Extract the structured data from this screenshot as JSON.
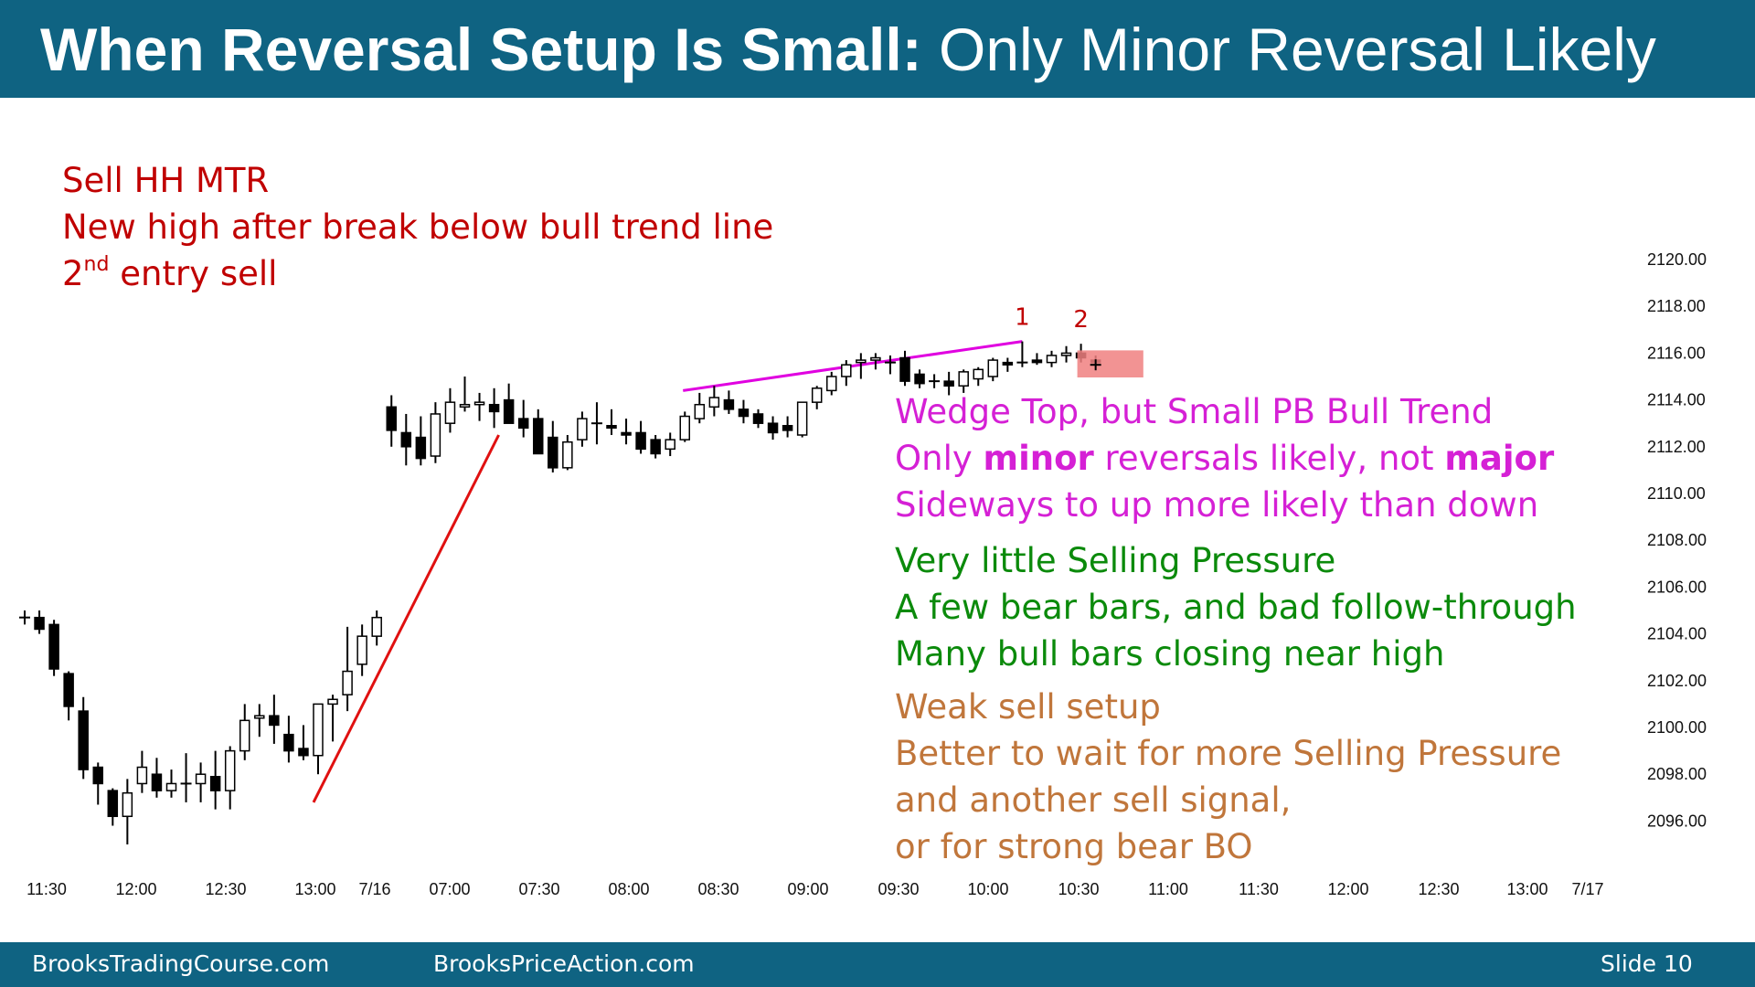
{
  "header": {
    "title_bold": "When Reversal Setup Is Small:",
    "title_rest": "Only Minor Reversal Likely"
  },
  "notes": {
    "red": {
      "line1": "Sell HH MTR",
      "line2": "New high after break below bull trend line",
      "line3_num": "2",
      "line3_sup": "nd",
      "line3_rest": " entry sell"
    },
    "magenta": {
      "line1": "Wedge Top, but Small PB Bull Trend",
      "line2_a": "Only ",
      "line2_b": "minor",
      "line2_c": " reversals likely, not ",
      "line2_d": "major",
      "line3": "Sideways to up more likely than down"
    },
    "green": {
      "line1": "Very little Selling Pressure",
      "line2": "A few bear bars, and bad follow-through",
      "line3": "Many bull bars closing near high"
    },
    "brown": {
      "line1": "Weak sell setup",
      "line2": "Better to wait for more Selling Pressure",
      "line3": "and another sell signal,",
      "line4": "or for strong bear BO"
    }
  },
  "footer": {
    "left": "BrooksTradingCourse.com",
    "center": "BrooksPriceAction.com",
    "slide": "Slide  10"
  },
  "colors": {
    "header_bg": "#0f6382",
    "trendline": "#e01010",
    "wedge_line": "#e000e0",
    "signal_box": "#f08080"
  },
  "chart_data": {
    "type": "candlestick",
    "title": "",
    "ylim": [
      2095,
      2121
    ],
    "yticks": [
      "2120.00",
      "2118.00",
      "2116.00",
      "2114.00",
      "2112.00",
      "2110.00",
      "2108.00",
      "2106.00",
      "2104.00",
      "2102.00",
      "2100.00",
      "2098.00",
      "2096.00"
    ],
    "xtick_labels": [
      "11:30",
      "12:00",
      "12:30",
      "13:00",
      "7/16",
      "07:00",
      "07:30",
      "08:00",
      "08:30",
      "09:00",
      "09:30",
      "10:00",
      "10:30",
      "11:00",
      "11:30",
      "12:00",
      "12:30",
      "13:00",
      "7/17"
    ],
    "bars": [
      {
        "o": 2104.7,
        "h": 2105.0,
        "l": 2104.4,
        "c": 2104.7
      },
      {
        "o": 2104.7,
        "h": 2105.0,
        "l": 2104.0,
        "c": 2104.2
      },
      {
        "o": 2104.4,
        "h": 2104.6,
        "l": 2102.2,
        "c": 2102.5
      },
      {
        "o": 2102.3,
        "h": 2102.4,
        "l": 2100.3,
        "c": 2100.9
      },
      {
        "o": 2100.7,
        "h": 2101.3,
        "l": 2097.8,
        "c": 2098.2
      },
      {
        "o": 2098.3,
        "h": 2098.5,
        "l": 2096.7,
        "c": 2097.6
      },
      {
        "o": 2097.3,
        "h": 2097.4,
        "l": 2095.8,
        "c": 2096.2
      },
      {
        "o": 2096.2,
        "h": 2097.8,
        "l": 2095.0,
        "c": 2097.2
      },
      {
        "o": 2097.6,
        "h": 2099.0,
        "l": 2097.2,
        "c": 2098.3
      },
      {
        "o": 2098.0,
        "h": 2098.7,
        "l": 2097.0,
        "c": 2097.3
      },
      {
        "o": 2097.3,
        "h": 2098.2,
        "l": 2097.0,
        "c": 2097.6
      },
      {
        "o": 2097.6,
        "h": 2098.9,
        "l": 2096.8,
        "c": 2097.6
      },
      {
        "o": 2097.6,
        "h": 2098.5,
        "l": 2096.8,
        "c": 2098.0
      },
      {
        "o": 2097.9,
        "h": 2099.0,
        "l": 2096.5,
        "c": 2097.3
      },
      {
        "o": 2097.3,
        "h": 2099.2,
        "l": 2096.5,
        "c": 2099.0
      },
      {
        "o": 2099.0,
        "h": 2101.0,
        "l": 2098.6,
        "c": 2100.3
      },
      {
        "o": 2100.4,
        "h": 2101.0,
        "l": 2099.6,
        "c": 2100.5
      },
      {
        "o": 2100.5,
        "h": 2101.4,
        "l": 2099.3,
        "c": 2100.1
      },
      {
        "o": 2099.7,
        "h": 2100.5,
        "l": 2098.5,
        "c": 2099.0
      },
      {
        "o": 2099.1,
        "h": 2100.1,
        "l": 2098.6,
        "c": 2098.8
      },
      {
        "o": 2098.8,
        "h": 2100.9,
        "l": 2098.0,
        "c": 2101.0
      },
      {
        "o": 2101.0,
        "h": 2101.4,
        "l": 2099.4,
        "c": 2101.2
      },
      {
        "o": 2101.4,
        "h": 2104.3,
        "l": 2100.7,
        "c": 2102.4
      },
      {
        "o": 2102.7,
        "h": 2104.4,
        "l": 2102.2,
        "c": 2103.9
      },
      {
        "o": 2103.9,
        "h": 2105.0,
        "l": 2103.5,
        "c": 2104.7
      },
      {
        "o": 2113.7,
        "h": 2114.2,
        "l": 2112.0,
        "c": 2112.7
      },
      {
        "o": 2112.6,
        "h": 2113.4,
        "l": 2111.2,
        "c": 2112.0
      },
      {
        "o": 2112.4,
        "h": 2113.3,
        "l": 2111.2,
        "c": 2111.5
      },
      {
        "o": 2111.6,
        "h": 2113.9,
        "l": 2111.3,
        "c": 2113.4
      },
      {
        "o": 2113.0,
        "h": 2114.5,
        "l": 2112.6,
        "c": 2113.9
      },
      {
        "o": 2113.7,
        "h": 2115.0,
        "l": 2113.5,
        "c": 2113.8
      },
      {
        "o": 2113.8,
        "h": 2114.3,
        "l": 2113.1,
        "c": 2113.9
      },
      {
        "o": 2113.8,
        "h": 2114.5,
        "l": 2112.8,
        "c": 2113.5
      },
      {
        "o": 2114.0,
        "h": 2114.7,
        "l": 2113.0,
        "c": 2113.0
      },
      {
        "o": 2113.2,
        "h": 2114.0,
        "l": 2112.4,
        "c": 2112.8
      },
      {
        "o": 2113.2,
        "h": 2113.6,
        "l": 2111.7,
        "c": 2111.7
      },
      {
        "o": 2112.4,
        "h": 2113.1,
        "l": 2110.9,
        "c": 2111.1
      },
      {
        "o": 2111.1,
        "h": 2112.5,
        "l": 2111.0,
        "c": 2112.2
      },
      {
        "o": 2112.3,
        "h": 2113.5,
        "l": 2112.0,
        "c": 2113.2
      },
      {
        "o": 2113.0,
        "h": 2113.9,
        "l": 2112.1,
        "c": 2113.0
      },
      {
        "o": 2112.9,
        "h": 2113.6,
        "l": 2112.5,
        "c": 2112.8
      },
      {
        "o": 2112.6,
        "h": 2113.2,
        "l": 2112.1,
        "c": 2112.5
      },
      {
        "o": 2112.6,
        "h": 2113.1,
        "l": 2111.7,
        "c": 2111.9
      },
      {
        "o": 2112.3,
        "h": 2112.5,
        "l": 2111.5,
        "c": 2111.7
      },
      {
        "o": 2111.9,
        "h": 2112.6,
        "l": 2111.6,
        "c": 2112.3
      },
      {
        "o": 2112.3,
        "h": 2113.5,
        "l": 2112.2,
        "c": 2113.3
      },
      {
        "o": 2113.2,
        "h": 2114.3,
        "l": 2113.0,
        "c": 2113.8
      },
      {
        "o": 2113.7,
        "h": 2114.6,
        "l": 2113.3,
        "c": 2114.1
      },
      {
        "o": 2114.0,
        "h": 2114.4,
        "l": 2113.4,
        "c": 2113.6
      },
      {
        "o": 2113.6,
        "h": 2114.0,
        "l": 2113.0,
        "c": 2113.3
      },
      {
        "o": 2113.4,
        "h": 2113.6,
        "l": 2112.8,
        "c": 2113.0
      },
      {
        "o": 2113.0,
        "h": 2113.3,
        "l": 2112.3,
        "c": 2112.6
      },
      {
        "o": 2112.9,
        "h": 2113.3,
        "l": 2112.4,
        "c": 2112.7
      },
      {
        "o": 2112.5,
        "h": 2113.9,
        "l": 2112.4,
        "c": 2113.9
      },
      {
        "o": 2113.9,
        "h": 2114.6,
        "l": 2113.6,
        "c": 2114.5
      },
      {
        "o": 2114.4,
        "h": 2115.2,
        "l": 2114.2,
        "c": 2115.0
      },
      {
        "o": 2115.0,
        "h": 2115.7,
        "l": 2114.6,
        "c": 2115.5
      },
      {
        "o": 2115.6,
        "h": 2116.0,
        "l": 2114.9,
        "c": 2115.7
      },
      {
        "o": 2115.7,
        "h": 2116.0,
        "l": 2115.3,
        "c": 2115.8
      },
      {
        "o": 2115.6,
        "h": 2115.9,
        "l": 2115.1,
        "c": 2115.6
      },
      {
        "o": 2115.8,
        "h": 2116.1,
        "l": 2114.6,
        "c": 2114.8
      },
      {
        "o": 2115.1,
        "h": 2115.3,
        "l": 2114.5,
        "c": 2114.7
      },
      {
        "o": 2114.8,
        "h": 2115.1,
        "l": 2114.5,
        "c": 2114.8
      },
      {
        "o": 2114.8,
        "h": 2115.2,
        "l": 2114.2,
        "c": 2114.6
      },
      {
        "o": 2114.6,
        "h": 2115.3,
        "l": 2114.3,
        "c": 2115.2
      },
      {
        "o": 2114.9,
        "h": 2115.4,
        "l": 2114.6,
        "c": 2115.3
      },
      {
        "o": 2115.0,
        "h": 2115.8,
        "l": 2114.8,
        "c": 2115.7
      },
      {
        "o": 2115.6,
        "h": 2115.8,
        "l": 2115.2,
        "c": 2115.5
      },
      {
        "o": 2115.6,
        "h": 2116.5,
        "l": 2115.4,
        "c": 2115.6
      },
      {
        "o": 2115.7,
        "h": 2116.0,
        "l": 2115.5,
        "c": 2115.6
      },
      {
        "o": 2115.6,
        "h": 2116.1,
        "l": 2115.4,
        "c": 2115.9
      },
      {
        "o": 2115.9,
        "h": 2116.3,
        "l": 2115.6,
        "c": 2116.0
      },
      {
        "o": 2116.0,
        "h": 2116.4,
        "l": 2115.6,
        "c": 2115.8
      },
      {
        "o": 2115.7,
        "h": 2115.9,
        "l": 2115.5,
        "c": 2115.6
      }
    ],
    "annotations": [
      {
        "text": "1",
        "bar_index": 68
      },
      {
        "text": "2",
        "bar_index": 72
      }
    ],
    "bull_trend_line": {
      "from": {
        "bar_index": 20,
        "price": 2096.8
      },
      "to": {
        "bar_index": 32,
        "price": 2112.5
      }
    },
    "wedge_line": {
      "from": {
        "bar_index": 45,
        "price": 2114.4
      },
      "to": {
        "bar_index": 68,
        "price": 2116.5
      }
    },
    "signal_box": {
      "from_bar_index": 72,
      "to_bar_index": 76,
      "top": 2116.0,
      "bottom": 2115.0
    }
  }
}
